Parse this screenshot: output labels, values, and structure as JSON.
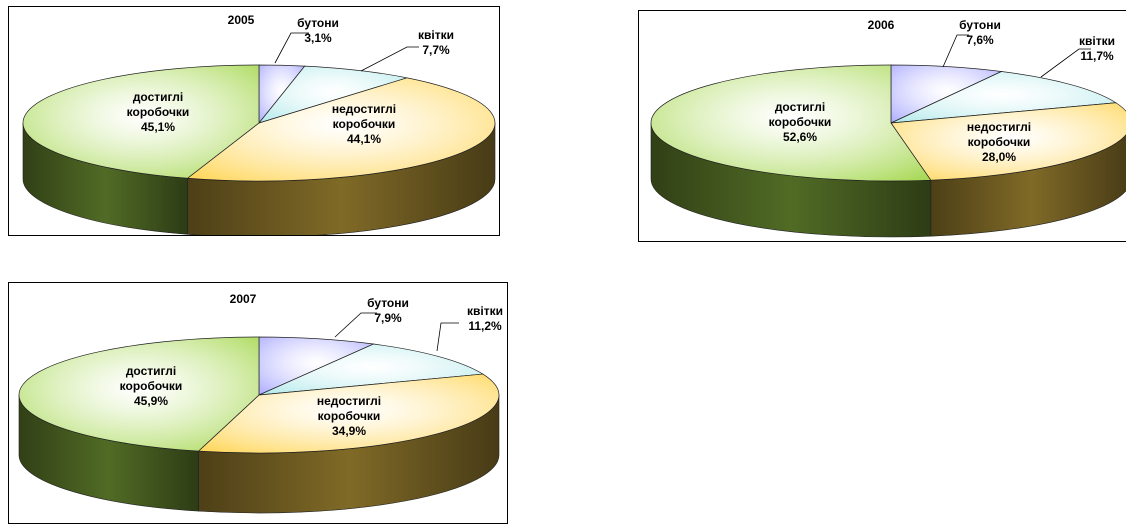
{
  "chart_data": [
    {
      "type": "pie",
      "title": "2005",
      "categories": [
        "бутони",
        "квітки",
        "недостиглі коробочки",
        "достиглі коробочки"
      ],
      "values": [
        3.1,
        7.7,
        44.1,
        45.1
      ],
      "value_labels": [
        "3,1%",
        "7,7%",
        "44,1%",
        "45,1%"
      ],
      "label_lines": [
        [
          "бутони"
        ],
        [
          "квітки"
        ],
        [
          "недостиглі",
          "коробочки"
        ],
        [
          "достиглі",
          "коробочки"
        ]
      ],
      "colors": [
        "#a8a8ff",
        "#aee8ea",
        "#ffd34d",
        "#a2d64a"
      ],
      "style": "3d-pie"
    },
    {
      "type": "pie",
      "title": "2006",
      "categories": [
        "бутони",
        "квітки",
        "недостиглі коробочки",
        "достиглі коробочки"
      ],
      "values": [
        7.6,
        11.7,
        28.0,
        52.6
      ],
      "value_labels": [
        "7,6%",
        "11,7%",
        "28,0%",
        "52,6%"
      ],
      "label_lines": [
        [
          "бутони"
        ],
        [
          "квітки"
        ],
        [
          "недостиглі",
          "коробочки"
        ],
        [
          "достиглі",
          "коробочки"
        ]
      ],
      "colors": [
        "#a8a8ff",
        "#aee8ea",
        "#ffd34d",
        "#a2d64a"
      ],
      "style": "3d-pie"
    },
    {
      "type": "pie",
      "title": "2007",
      "categories": [
        "бутони",
        "квітки",
        "недостиглі коробочки",
        "достиглі коробочки"
      ],
      "values": [
        7.9,
        11.2,
        34.9,
        45.9
      ],
      "value_labels": [
        "7,9%",
        "11,2%",
        "34,9%",
        "45,9%"
      ],
      "label_lines": [
        [
          "бутони"
        ],
        [
          "квітки"
        ],
        [
          "недостиглі",
          "коробочки"
        ],
        [
          "достиглі",
          "коробочки"
        ]
      ],
      "colors": [
        "#a8a8ff",
        "#aee8ea",
        "#ffd34d",
        "#a2d64a"
      ],
      "style": "3d-pie"
    }
  ]
}
